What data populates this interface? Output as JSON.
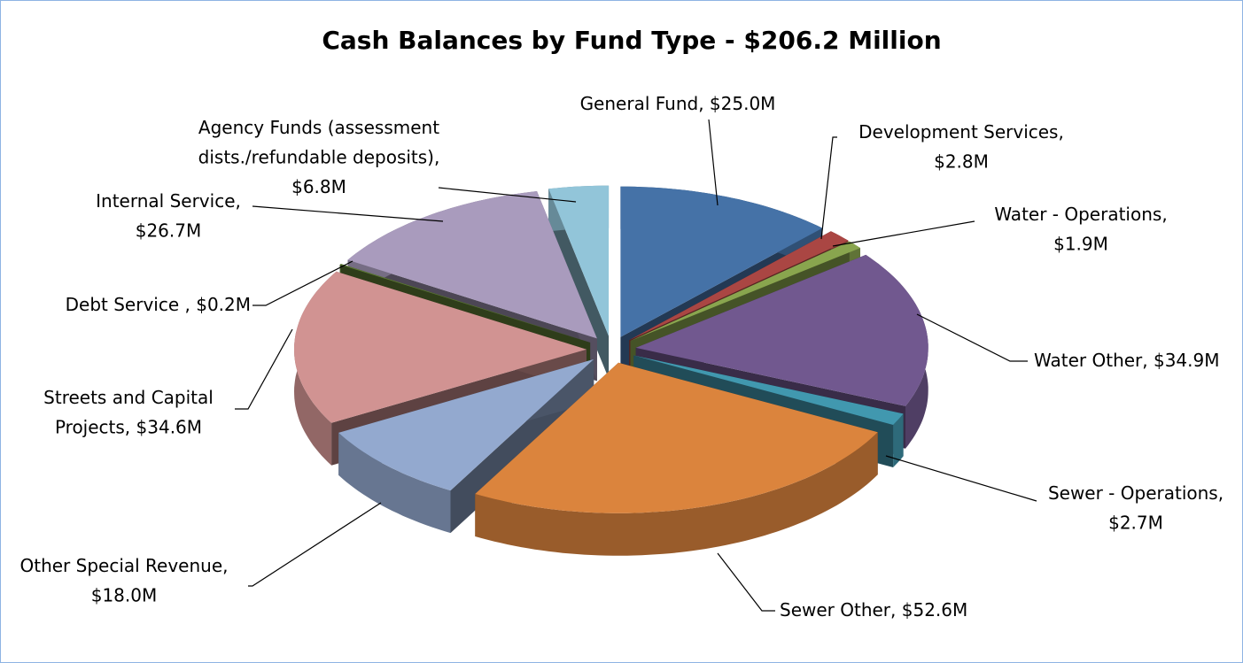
{
  "chart_data": {
    "type": "pie",
    "title": "Cash Balances by Fund Type - $206.2 Million",
    "values": [
      25.0,
      2.8,
      1.9,
      34.9,
      2.7,
      52.6,
      18.0,
      34.6,
      0.2,
      26.7,
      6.8
    ],
    "value_labels": [
      "General Fund, $25.0M",
      "Development Services,\n$2.8M",
      "Water - Operations,\n$1.9M",
      "Water Other, $34.9M",
      "Sewer - Operations,\n$2.7M",
      "Sewer Other, $52.6M",
      "Other Special Revenue,\n$18.0M",
      "Streets and Capital\nProjects, $34.6M",
      "Debt Service , $0.2M",
      "Internal Service,\n$26.7M",
      "Agency Funds (assessment\ndists./refundable deposits),\n$6.8M"
    ],
    "colors": [
      "#4572a7",
      "#aa4643",
      "#89a54e",
      "#71588f",
      "#4198af",
      "#db843d",
      "#93a9cf",
      "#d19392",
      "#5d7a34",
      "#a99bbd",
      "#92c5d9"
    ]
  }
}
